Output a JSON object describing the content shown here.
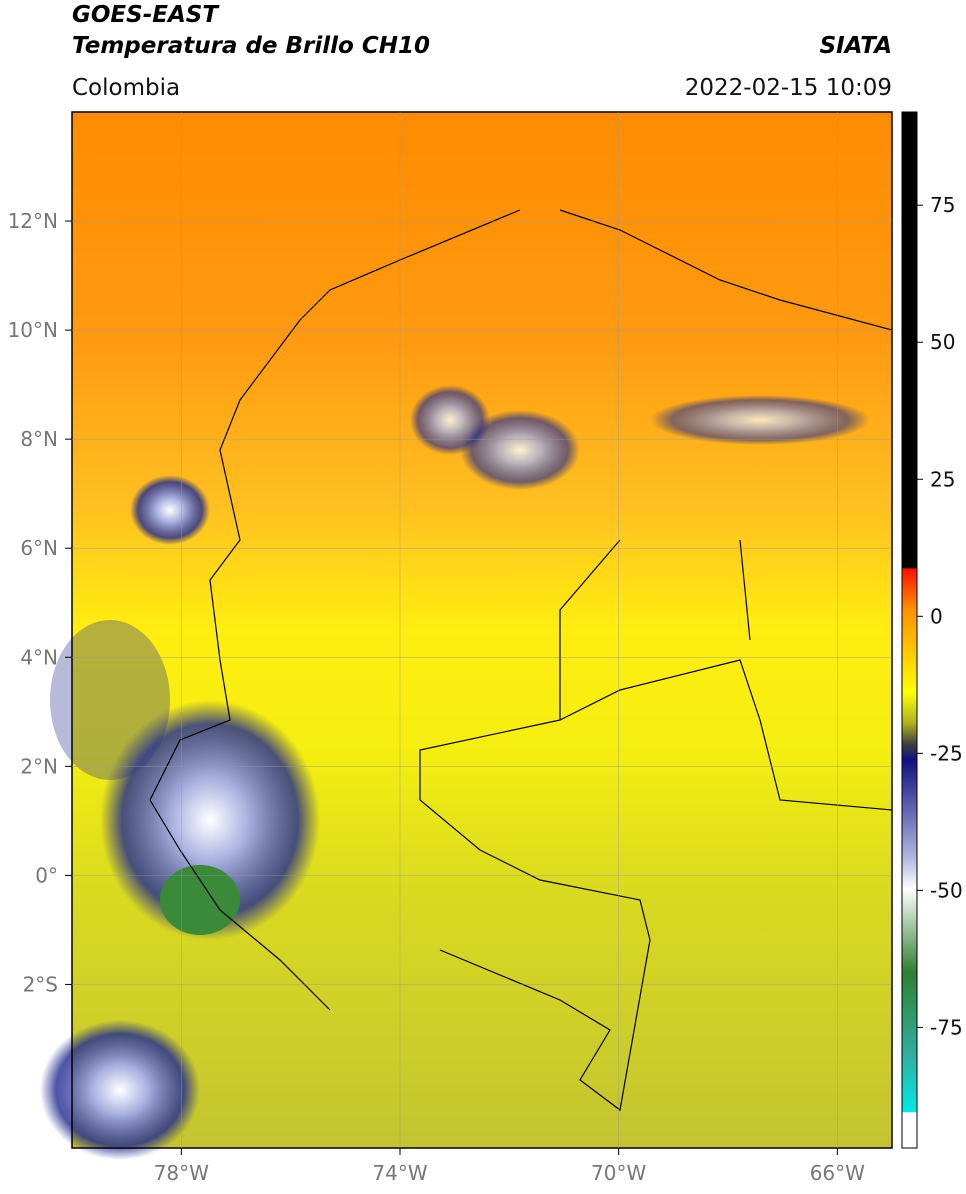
{
  "header": {
    "source": "GOES-EAST",
    "title": "Temperatura de Brillo CH10",
    "org": "SIATA",
    "region": "Colombia",
    "datetime": "2022-02-15 10:09"
  },
  "map": {
    "lon_range": [
      -80,
      -65
    ],
    "lat_range": [
      -5,
      14
    ],
    "lon_ticks": [
      {
        "value": -78,
        "label": "78°W"
      },
      {
        "value": -74,
        "label": "74°W"
      },
      {
        "value": -70,
        "label": "70°W"
      },
      {
        "value": -66,
        "label": "66°W"
      }
    ],
    "lat_ticks": [
      {
        "value": 12,
        "label": "12°N"
      },
      {
        "value": 10,
        "label": "10°N"
      },
      {
        "value": 8,
        "label": "8°N"
      },
      {
        "value": 6,
        "label": "6°N"
      },
      {
        "value": 4,
        "label": "4°N"
      },
      {
        "value": 2,
        "label": "2°N"
      },
      {
        "value": 0,
        "label": "0°"
      },
      {
        "value": -2,
        "label": "2°S"
      }
    ],
    "grid": true
  },
  "colorbar": {
    "range": [
      -97,
      92
    ],
    "ticks": [
      75,
      50,
      25,
      0,
      -25,
      -50,
      -75
    ]
  }
}
